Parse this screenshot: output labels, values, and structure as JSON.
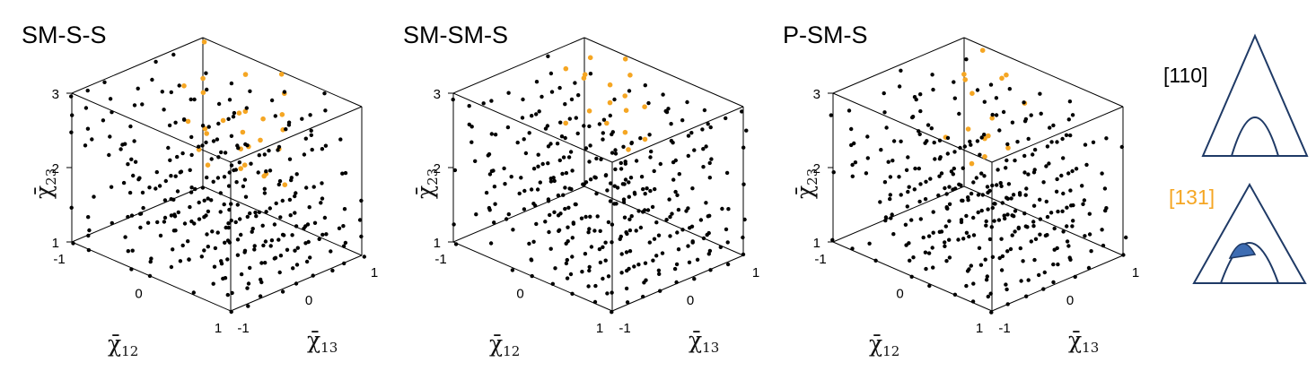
{
  "figure": {
    "colors": {
      "black_points": "#000000",
      "orange_points": "#f5a623",
      "legend_blue": "#1f3a66",
      "legend_fill": "#3e6db3"
    }
  },
  "chart_data": [
    {
      "type": "scatter",
      "title": "SM-S-S",
      "xlabel": "χ̄12",
      "ylabel": "χ̄13",
      "zlabel": "χ̄23",
      "xlim": [
        -1,
        1
      ],
      "ylim": [
        -1,
        1
      ],
      "zlim": [
        1,
        3
      ],
      "xticks": [
        "-1",
        "0",
        "1"
      ],
      "yticks": [
        "-1",
        "0",
        "1"
      ],
      "zticks": [
        "1",
        "2",
        "3"
      ],
      "series": [
        {
          "name": "[110]",
          "color": "#000000",
          "description": "lattice of black points filling the cube"
        },
        {
          "name": "[131]",
          "color": "#f5a623",
          "description": "orange points at high χ̄13, low χ̄12 corner"
        }
      ]
    },
    {
      "type": "scatter",
      "title": "SM-SM-S",
      "xlabel": "χ̄12",
      "ylabel": "χ̄13",
      "zlabel": "χ̄23",
      "xlim": [
        -1,
        1
      ],
      "ylim": [
        -1,
        1
      ],
      "zlim": [
        1,
        3
      ],
      "xticks": [
        "-1",
        "0",
        "1"
      ],
      "yticks": [
        "-1",
        "0",
        "1"
      ],
      "zticks": [
        "1",
        "2",
        "3"
      ],
      "series": [
        {
          "name": "[110]",
          "color": "#000000"
        },
        {
          "name": "[131]",
          "color": "#f5a623"
        }
      ]
    },
    {
      "type": "scatter",
      "title": "P-SM-S",
      "xlabel": "χ̄12",
      "ylabel": "χ̄13",
      "zlabel": "χ̄23",
      "xlim": [
        -1,
        1
      ],
      "ylim": [
        -1,
        1
      ],
      "zlim": [
        1,
        3
      ],
      "xticks": [
        "-1",
        "0",
        "1"
      ],
      "yticks": [
        "-1",
        "0",
        "1"
      ],
      "zticks": [
        "1",
        "2",
        "3"
      ],
      "series": [
        {
          "name": "[110]",
          "color": "#000000"
        },
        {
          "name": "[131]",
          "color": "#f5a623"
        }
      ]
    }
  ],
  "legend": {
    "items": [
      {
        "label": "[110]",
        "color": "#000000"
      },
      {
        "label": "[131]",
        "color": "#f5a623"
      }
    ]
  }
}
